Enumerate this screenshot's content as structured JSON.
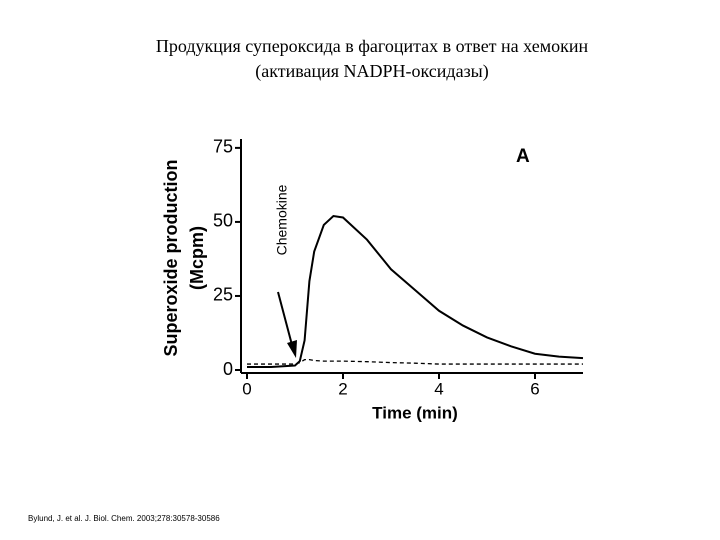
{
  "chart_data": {
    "type": "line",
    "title": [
      "Продукция супероксида в фагоцитах в ответ на хемокин",
      "(активация NADPH-оксидазы)"
    ],
    "panel_label": "A",
    "annotation": "Chemokine",
    "ylabel": [
      "Superoxide production",
      "(Mcpm)"
    ],
    "xlabel": "Time (min)",
    "citation": "Bylund, J. et al. J. Biol. Chem. 2003;278:30578-30586",
    "x": [
      0,
      0.5,
      1,
      1.1,
      1.2,
      1.3,
      1.4,
      1.6,
      1.8,
      2,
      2.5,
      3,
      3.5,
      4,
      4.5,
      5,
      5.5,
      6,
      6.5,
      7
    ],
    "series": [
      {
        "color": "#000000",
        "line_style": "solid",
        "values": [
          1,
          1,
          1.5,
          3,
          10,
          30,
          40,
          49,
          52,
          51.5,
          44,
          34,
          27,
          20,
          15,
          11,
          8,
          5.5,
          4.5,
          4
        ]
      },
      {
        "color": "#000000",
        "line_style": "dashed",
        "values": [
          2,
          2,
          2,
          2.5,
          3.5,
          3.5,
          3.2,
          3,
          3,
          3,
          2.8,
          2.5,
          2.3,
          2,
          2,
          2,
          2,
          2,
          2,
          2
        ]
      }
    ],
    "xlim": [
      0,
      7
    ],
    "xticks": [
      0,
      2,
      4,
      6
    ],
    "ylim": [
      0,
      78
    ],
    "yticks": [
      0,
      25,
      50,
      75
    ]
  }
}
